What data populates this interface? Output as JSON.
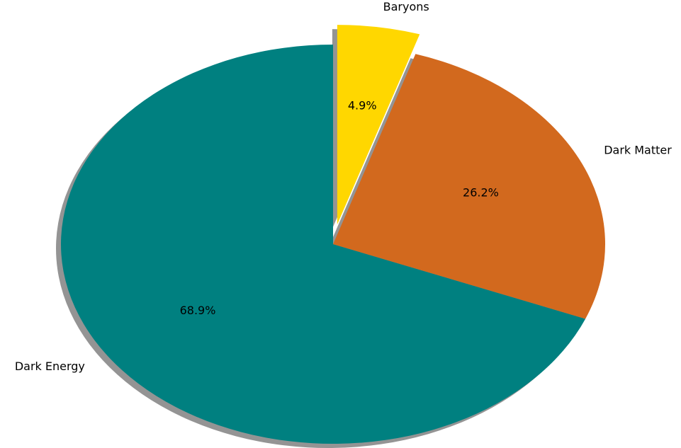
{
  "chart_data": {
    "type": "pie",
    "categories": [
      "Dark Energy",
      "Dark Matter",
      "Baryons"
    ],
    "values": [
      68.9,
      26.2,
      4.9
    ],
    "value_labels": [
      "68.9%",
      "26.2%",
      "4.9%"
    ],
    "colors": [
      "#008080",
      "#d2691e",
      "#ffd700"
    ],
    "explode": [
      0,
      0,
      0.1
    ],
    "start_angle": 90,
    "shadow": true
  }
}
